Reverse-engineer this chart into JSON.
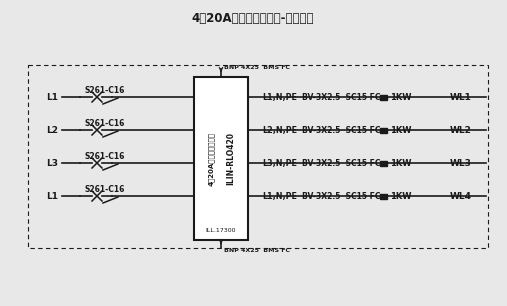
{
  "title": "4路20A智能继电器模块-系统图示",
  "rows": [
    {
      "label_in": "L1",
      "breaker": "S261-C16",
      "circuit_label": "L1,N,PE",
      "cable": "BV-3X2.5  SC15 FC",
      "load_label": "1KW",
      "out_label": "WL1"
    },
    {
      "label_in": "L2",
      "breaker": "S261-C16",
      "circuit_label": "L2,N,PE",
      "cable": "BV-3X2.5  SC15 FC",
      "load_label": "1KW",
      "out_label": "WL2"
    },
    {
      "label_in": "L3",
      "breaker": "S261-C16",
      "circuit_label": "L3,N,PE",
      "cable": "BV-3X2.5  SC15 FC",
      "load_label": "1KW",
      "out_label": "WL3"
    },
    {
      "label_in": "L1",
      "breaker": "S261-C16",
      "circuit_label": "L1,N,PE",
      "cable": "BV-3X2.5  SC15 FC",
      "load_label": "1KW",
      "out_label": "WL4"
    }
  ],
  "module_label_ch": "4路20A智能继电器模块",
  "module_label_en": "ILIN-RLO420",
  "module_label_code": "ILL.17300",
  "input_bus_label": "BNP 4X25  BMS FC",
  "output_bus_label": "BNP 4X25  BMS FC",
  "background": "#e8e8e8",
  "border_bg": "#d8d8d8",
  "line_color": "#1a1a1a",
  "text_color": "#1a1a1a"
}
